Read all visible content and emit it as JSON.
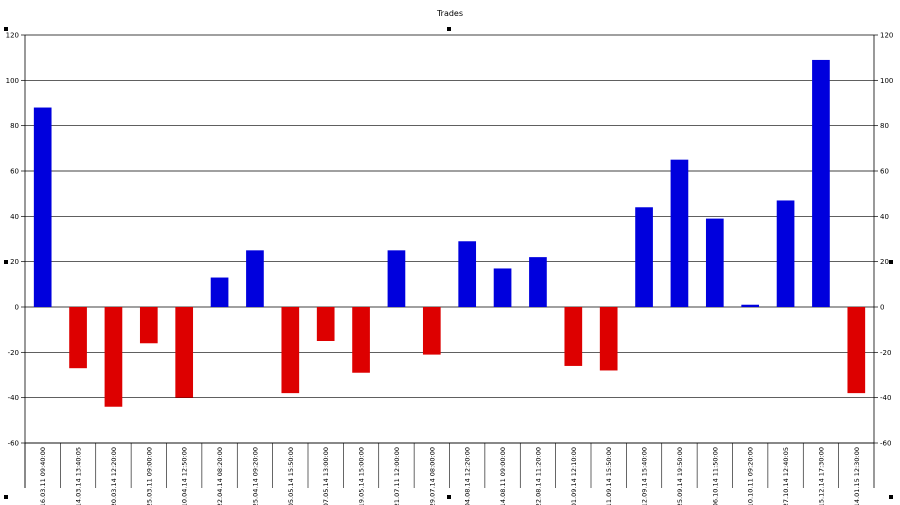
{
  "chart_data": {
    "type": "bar",
    "title": "Trades",
    "xlabel": "",
    "ylabel": "",
    "ylim": [
      -60,
      120
    ],
    "yticks": [
      -60,
      -40,
      -20,
      0,
      20,
      40,
      60,
      80,
      100,
      120
    ],
    "grid": true,
    "legend": "none",
    "colors": {
      "positive": "#0000dd",
      "negative": "#dd0000"
    },
    "categories": [
      "16.03.11 09:40:00",
      "14.03.14 13:40:05",
      "20.03.14 12:20:00",
      "25.03.11 09:00:00",
      "10.04.14 12:50:00",
      "22.04.14 08:20:00",
      "25.04.14 09:20:00",
      "05.05.14 15:50:00",
      "07.05.14 13:00:00",
      "19.05.14 15:00:00",
      "21.07.11 12:00:00",
      "29.07.14 08:00:00",
      "04.08.14 12:20:00",
      "14.08.11 09:00:00",
      "22.08.14 11:20:00",
      "01.09.14 12:10:00",
      "11.09.14 15:50:00",
      "12.09.14 15:40:00",
      "25.09.14 19:50:00",
      "06.10.14 11:50:00",
      "10.10.11 09:20:00",
      "27.10.14 12:40:05",
      "15.12.14 17:30:00",
      "14.01.15 12:30:00"
    ],
    "values": [
      88,
      -27,
      -44,
      -16,
      -40,
      13,
      25,
      -38,
      -15,
      -29,
      25,
      -21,
      29,
      17,
      22,
      -26,
      -28,
      44,
      65,
      39,
      1,
      47,
      109,
      -38
    ]
  }
}
